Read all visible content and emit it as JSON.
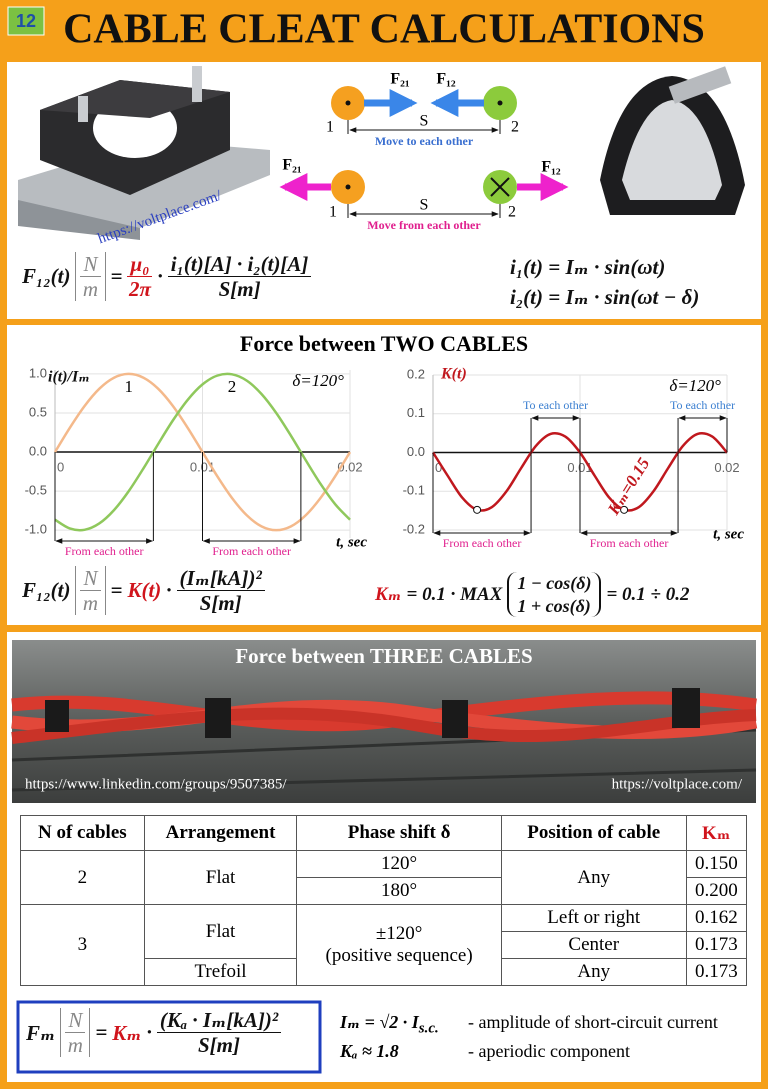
{
  "header": {
    "badge": "12",
    "title": "CABLE CLEAT CALCULATIONS"
  },
  "top": {
    "watermark": "https://voltplace.com/",
    "attract": {
      "force_left": "F₂₁",
      "force_right": "F₁₂",
      "cable_left": "1",
      "cable_right": "2",
      "distance": "S",
      "caption": "Move to each other"
    },
    "repel": {
      "force_left": "F₂₁",
      "force_right": "F₁₂",
      "cable_left": "1",
      "cable_right": "2",
      "distance": "S",
      "caption": "Move from each other"
    },
    "formula": {
      "lhs": "F₁₂(t)",
      "unit": {
        "num": "N",
        "den": "m"
      },
      "eq": "=",
      "const": {
        "num": "μ₀",
        "den": "2π"
      },
      "dot": "·",
      "num": "i₁(t)[A] · i₂(t)[A]",
      "den": "S[m]"
    },
    "currents": [
      "i₁(t) = Iₘ · sin(ωt)",
      "i₂(t) = Iₘ · sin(ωt − δ)"
    ]
  },
  "two_cables": {
    "title": "Force between TWO CABLES",
    "formula": {
      "lhs": "F₁₂(t)",
      "unit": {
        "num": "N",
        "den": "m"
      },
      "eq": "=",
      "factor": "K(t)",
      "dot": "·",
      "num": "(Iₘ[kA])²",
      "den": "S[m]"
    },
    "km_formula": {
      "lhs": "Kₘ",
      "rhs": "= 0.1 · MAX",
      "top": "1 − cos(δ)",
      "bottom": "1 + cos(δ)",
      "result": "= 0.1 ÷ 0.2"
    }
  },
  "chart_data": [
    {
      "type": "line",
      "y_label": "i(t)/Iₘ",
      "x_label": "t, sec",
      "annotation": "δ=120°",
      "x": [
        0,
        0.001,
        0.002,
        0.003,
        0.004,
        0.005,
        0.006,
        0.007,
        0.008,
        0.009,
        0.01,
        0.011,
        0.012,
        0.013,
        0.014,
        0.015,
        0.016,
        0.017,
        0.018,
        0.019,
        0.02
      ],
      "series": [
        {
          "name": "1",
          "color": "#f4b98b",
          "values": [
            0,
            0.309,
            0.588,
            0.809,
            0.951,
            1,
            0.951,
            0.809,
            0.588,
            0.309,
            0,
            -0.309,
            -0.588,
            -0.809,
            -0.951,
            -1,
            -0.951,
            -0.809,
            -0.588,
            -0.309,
            0
          ]
        },
        {
          "name": "2",
          "color": "#8fc85c",
          "values": [
            -0.866,
            -0.978,
            -0.995,
            -0.914,
            -0.743,
            -0.5,
            -0.208,
            0.105,
            0.407,
            0.669,
            0.866,
            0.978,
            0.995,
            0.914,
            0.743,
            0.5,
            0.208,
            -0.105,
            -0.407,
            -0.669,
            -0.866
          ]
        }
      ],
      "xlim": [
        0,
        0.02
      ],
      "xticks": [
        0,
        0.01,
        0.02
      ],
      "ylim": [
        -1.1,
        1.05
      ],
      "yticks": [
        {
          "value": 1,
          "label": "1.0"
        },
        0.5,
        {
          "value": 0,
          "label": "0.0"
        },
        -0.5,
        {
          "value": -1,
          "label": "-1.0"
        }
      ],
      "grid": true,
      "regions": [
        {
          "label": "From each other",
          "from": 0,
          "to": 0.00667,
          "color": "#e0208e",
          "position": "bottom"
        },
        {
          "label": "From each other",
          "from": 0.01,
          "to": 0.01667,
          "color": "#e0208e",
          "position": "bottom"
        }
      ]
    },
    {
      "type": "line",
      "y_label": "K(t)",
      "x_label": "t, sec",
      "annotation": "δ=120°",
      "peak_label": "Kₘ=0.15",
      "color": "#c0181e",
      "x": [
        0,
        0.001,
        0.002,
        0.003,
        0.004,
        0.005,
        0.006,
        0.007,
        0.008,
        0.009,
        0.01,
        0.011,
        0.012,
        0.013,
        0.014,
        0.015,
        0.016,
        0.017,
        0.018,
        0.019,
        0.02
      ],
      "values": [
        0,
        -0.06,
        -0.117,
        -0.148,
        -0.141,
        -0.1,
        -0.04,
        0.017,
        0.048,
        0.041,
        0,
        -0.06,
        -0.117,
        -0.148,
        -0.141,
        -0.1,
        -0.04,
        0.017,
        0.048,
        0.041,
        0
      ],
      "xlim": [
        0,
        0.02
      ],
      "xticks": [
        0,
        0.01,
        0.02
      ],
      "ylim": [
        -0.2,
        0.2
      ],
      "yticks": [
        0.2,
        0.1,
        {
          "value": 0,
          "label": "0.0"
        },
        -0.1,
        -0.2
      ],
      "grid": true,
      "regions": [
        {
          "label": "From each other",
          "from": 0,
          "to": 0.00667,
          "color": "#e0208e",
          "position": "bottom"
        },
        {
          "label": "To each other",
          "from": 0.00667,
          "to": 0.01,
          "color": "#3b7fd0",
          "position": "top"
        },
        {
          "label": "From each other",
          "from": 0.01,
          "to": 0.01667,
          "color": "#e0208e",
          "position": "bottom"
        },
        {
          "label": "To each other",
          "from": 0.01667,
          "to": 0.02,
          "color": "#3b7fd0",
          "position": "top"
        }
      ]
    }
  ],
  "three_cables": {
    "title": "Force between THREE CABLES",
    "url_left": "https://www.linkedin.com/groups/9507385/",
    "url_right": "https://voltplace.com/"
  },
  "table": {
    "header": [
      "N of cables",
      "Arrangement",
      "Phase shift δ",
      "Position of cable",
      "Kₘ"
    ],
    "rows": [
      [
        "2",
        "Flat",
        "120°",
        "Any",
        "0.150"
      ],
      [
        "180°",
        "0.200"
      ],
      [
        "3",
        "Flat",
        [
          "±120°",
          "(positive sequence)"
        ],
        "Left or right",
        "0.162"
      ],
      [
        "Center",
        "0.173"
      ],
      [
        "Trefoil",
        "Any",
        "0.173"
      ]
    ]
  },
  "final": {
    "formula": {
      "lhs": "Fₘ",
      "unit": {
        "num": "N",
        "den": "m"
      },
      "eq": "=",
      "factor": "Kₘ",
      "dot": "·",
      "num": "(Kₐ · Iₘ[kA])²",
      "den": "S[m]"
    },
    "notes": [
      {
        "symbol": "Iₘ = √2 · I",
        "subscript": "s.c.",
        "text": "- amplitude of short-circuit current"
      },
      {
        "symbol": "Kₐ ≈ 1.8",
        "text": "- aperiodic component"
      }
    ]
  }
}
